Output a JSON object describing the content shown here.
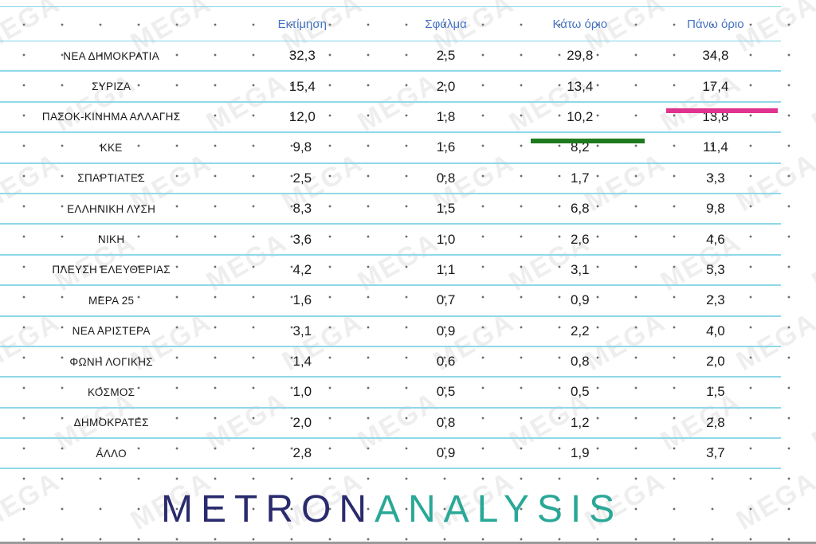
{
  "table": {
    "headers": [
      "",
      "Εκτίμηση",
      "Σφάλμα",
      "Κάτω όριο",
      "Πάνω όριο"
    ],
    "rows": [
      [
        "ΝΕΑ   ΔΗΜΟΚΡΑΤΙΑ",
        "32,3",
        "2,5",
        "29,8",
        "34,8"
      ],
      [
        "ΣΥΡΙΖΑ",
        "15,4",
        "2,0",
        "13,4",
        "17,4"
      ],
      [
        "ΠΑΣΟΚ-ΚΙΝΗΜΑ  ΑΛΛΑΓΗΣ",
        "12,0",
        "1,8",
        "10,2",
        "13,8"
      ],
      [
        "ΚΚΕ",
        "9,8",
        "1,6",
        "8,2",
        "11,4"
      ],
      [
        "ΣΠΑΡΤΙΑΤΕΣ",
        "2,5",
        "0,8",
        "1,7",
        "3,3"
      ],
      [
        "ΕΛΛΗΝΙΚΗ ΛΥΣΗ",
        "8,3",
        "1,5",
        "6,8",
        "9,8"
      ],
      [
        "ΝΙΚΗ",
        "3,6",
        "1,0",
        "2,6",
        "4,6"
      ],
      [
        "ΠΛΕΥΣΗ ΕΛΕΥΘΕΡΙΑΣ",
        "4,2",
        "1,1",
        "3,1",
        "5,3"
      ],
      [
        "ΜΕΡΑ 25",
        "1,6",
        "0,7",
        "0,9",
        "2,3"
      ],
      [
        "ΝΕΑ ΑΡΙΣΤΕΡΑ",
        "3,1",
        "0,9",
        "2,2",
        "4,0"
      ],
      [
        "ΦΩΝΗ ΛΟΓΙΚΗΣ",
        "1,4",
        "0,6",
        "0,8",
        "2,0"
      ],
      [
        "ΚΟΣΜΟΣ",
        "1,0",
        "0,5",
        "0,5",
        "1,5"
      ],
      [
        "ΔΗΜΟΚΡΑΤΕΣ",
        "2,0",
        "0,8",
        "1,2",
        "2,8"
      ],
      [
        "ΑΛΛΟ",
        "2,8",
        "0,9",
        "1,9",
        "3,7"
      ]
    ]
  },
  "watermark": "MEGA",
  "logo": {
    "part1": "METRON",
    "part2": "ANALYSIS"
  },
  "colors": {
    "header_text": "#4472c4",
    "row_line": "#8fd8e8",
    "marker_green": "#1e7a1e",
    "marker_pink": "#e0338f",
    "logo_dark": "#2a2a6e",
    "logo_teal": "#2aa897"
  }
}
